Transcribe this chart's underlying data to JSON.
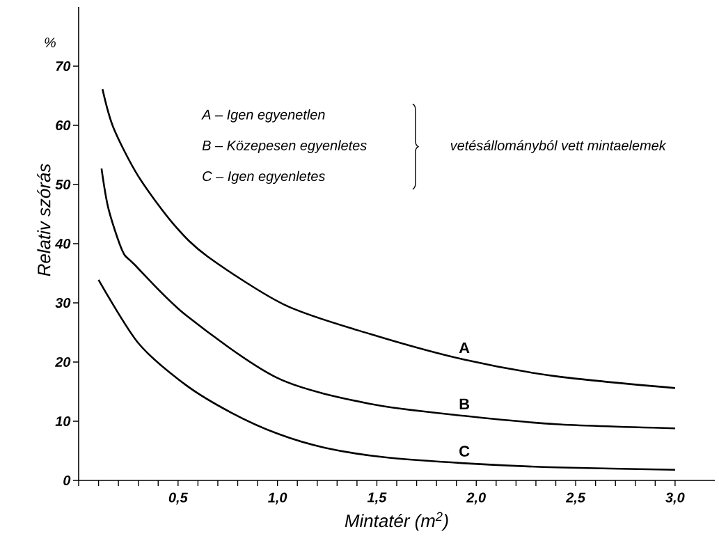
{
  "chart_data": {
    "type": "line",
    "xlabel": "Mintatér (m$^{2}$)",
    "ylabel": "Relativ szórás",
    "annotations": [
      "%",
      "A – Igen egyenetlen",
      "B – Közepesen egyenletes",
      "C – Igen egyenletes",
      "vetésállományból vett mintaelemek"
    ],
    "series": [
      {
        "name": "A",
        "color": "#000000",
        "x": [
          0.12,
          0.175,
          0.3,
          0.48,
          0.65,
          1.04,
          1.47,
          1.94,
          2.4,
          3.0
        ],
        "values": [
          66.1,
          59.6,
          51.4,
          43.2,
          37.8,
          29.6,
          24.7,
          20.4,
          17.6,
          15.6
        ]
      },
      {
        "name": "B",
        "color": "#000000",
        "x": [
          0.115,
          0.15,
          0.22,
          0.28,
          0.54,
          1.0,
          1.47,
          1.94,
          2.4,
          3.0
        ],
        "values": [
          52.7,
          45.9,
          38.8,
          36.5,
          27.9,
          17.3,
          12.9,
          10.9,
          9.5,
          8.8
        ]
      },
      {
        "name": "C",
        "color": "#000000",
        "x": [
          0.1,
          0.3,
          0.54,
          0.77,
          1.0,
          1.24,
          1.54,
          1.94,
          2.4,
          3.0
        ],
        "values": [
          33.9,
          23.2,
          16.1,
          11.4,
          7.9,
          5.5,
          3.9,
          2.9,
          2.2,
          1.8
        ]
      }
    ],
    "xlim": [
      0,
      3.2
    ],
    "ylim": [
      0,
      80
    ],
    "xticks": [
      {
        "value": 0,
        "label": null
      },
      {
        "value": 0.1,
        "label": null
      },
      {
        "value": 0.2,
        "label": null
      },
      {
        "value": 0.3,
        "label": null
      },
      {
        "value": 0.4,
        "label": null
      },
      {
        "value": 0.5,
        "label": "0,5"
      },
      {
        "value": 0.6,
        "label": null
      },
      {
        "value": 0.7,
        "label": null
      },
      {
        "value": 0.8,
        "label": null
      },
      {
        "value": 0.9,
        "label": null
      },
      {
        "value": 1.0,
        "label": "1,0"
      },
      {
        "value": 1.1,
        "label": null
      },
      {
        "value": 1.2,
        "label": null
      },
      {
        "value": 1.3,
        "label": null
      },
      {
        "value": 1.4,
        "label": null
      },
      {
        "value": 1.5,
        "label": "1,5"
      },
      {
        "value": 1.6,
        "label": null
      },
      {
        "value": 1.7,
        "label": null
      },
      {
        "value": 1.8,
        "label": null
      },
      {
        "value": 1.9,
        "label": null
      },
      {
        "value": 2.0,
        "label": "2,0"
      },
      {
        "value": 2.1,
        "label": null
      },
      {
        "value": 2.2,
        "label": null
      },
      {
        "value": 2.3,
        "label": null
      },
      {
        "value": 2.4,
        "label": null
      },
      {
        "value": 2.5,
        "label": "2,5"
      },
      {
        "value": 2.6,
        "label": null
      },
      {
        "value": 2.7,
        "label": null
      },
      {
        "value": 2.8,
        "label": null
      },
      {
        "value": 2.9,
        "label": null
      },
      {
        "value": 3.0,
        "label": "3,0"
      }
    ],
    "yticks": [
      0,
      10,
      20,
      30,
      40,
      50,
      60,
      70
    ],
    "grid": false,
    "legend": false,
    "marker": "none",
    "line_style": "solid"
  }
}
